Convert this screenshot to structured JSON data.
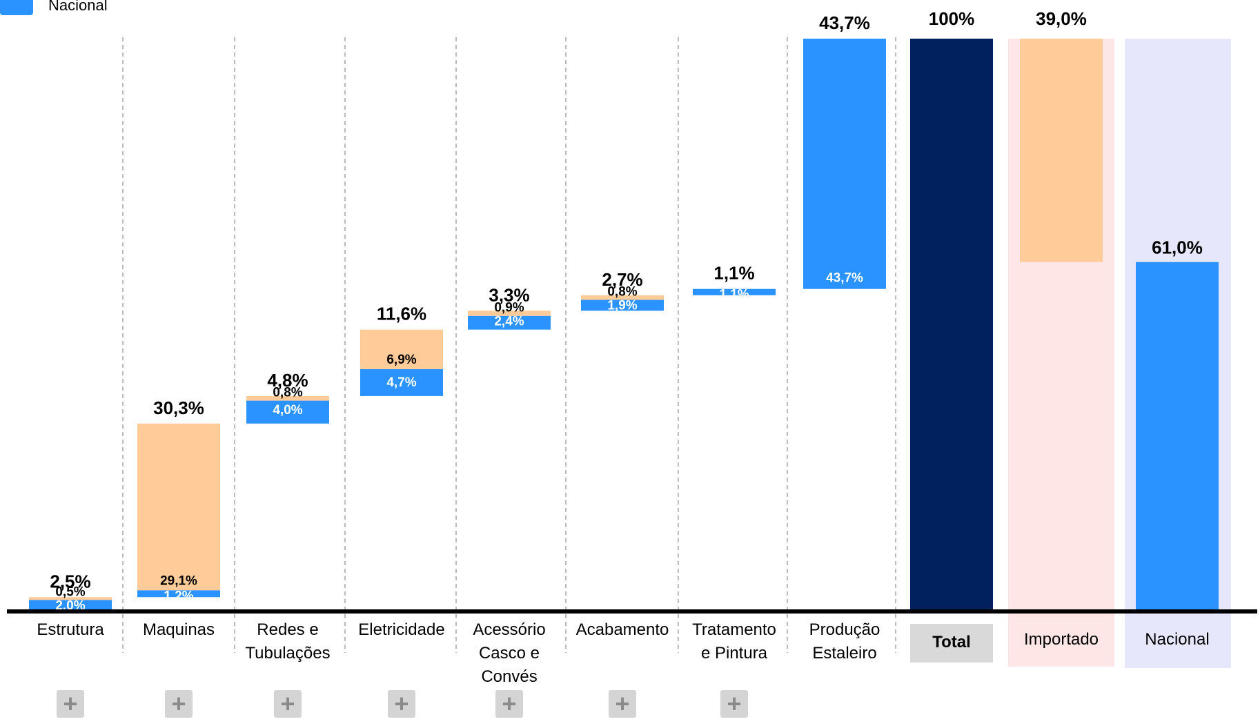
{
  "legend": {
    "nacional_label": "Nacional"
  },
  "colors": {
    "nacional": "#2b93ff",
    "importado": "#ffcc99",
    "total": "#00215e",
    "importado_bg": "#fde6e5",
    "nacional_bg": "#e6e7fb",
    "total_label_bg": "#d9d9d9"
  },
  "expand_buttons": {
    "symbol": "+",
    "count": 7,
    "icon": "plus-icon"
  },
  "chart_data": {
    "type": "bar",
    "subtype": "waterfall",
    "ylim": [
      0,
      100
    ],
    "grid": false,
    "legend_position": "top-left",
    "categories": [
      {
        "label": "Estrutura",
        "nacional": 2.0,
        "importado": 0.5,
        "total": 2.5,
        "nacional_label": "2,0%",
        "importado_label": "0,5%",
        "total_label": "2,5%",
        "expandable": true
      },
      {
        "label": "Maquinas",
        "nacional": 1.2,
        "importado": 29.1,
        "total": 30.3,
        "nacional_label": "1,2%",
        "importado_label": "29,1%",
        "total_label": "30,3%",
        "expandable": true
      },
      {
        "label": "Redes e\nTubulações",
        "nacional": 4.0,
        "importado": 0.8,
        "total": 4.8,
        "nacional_label": "4,0%",
        "importado_label": "0,8%",
        "total_label": "4,8%",
        "expandable": true
      },
      {
        "label": "Eletricidade",
        "nacional": 4.7,
        "importado": 6.9,
        "total": 11.6,
        "nacional_label": "4,7%",
        "importado_label": "6,9%",
        "total_label": "11,6%",
        "expandable": true
      },
      {
        "label": "Acessório\nCasco e\nConvés",
        "nacional": 2.4,
        "importado": 0.9,
        "total": 3.3,
        "nacional_label": "2,4%",
        "importado_label": "0,9%",
        "total_label": "3,3%",
        "expandable": true
      },
      {
        "label": "Acabamento",
        "nacional": 1.9,
        "importado": 0.8,
        "total": 2.7,
        "nacional_label": "1,9%",
        "importado_label": "0,8%",
        "total_label": "2,7%",
        "expandable": true
      },
      {
        "label": "Tratamento\ne Pintura",
        "nacional": 1.1,
        "importado": 0.0,
        "total": 1.1,
        "nacional_label": "1,1%",
        "importado_label": "",
        "total_label": "1,1%",
        "expandable": true
      },
      {
        "label": "Produção\nEstaleiro",
        "nacional": 43.7,
        "importado": 0.0,
        "total": 43.7,
        "nacional_label": "43,7%",
        "importado_label": "",
        "total_label": "43,7%",
        "expandable": false
      }
    ],
    "summary": [
      {
        "key": "total",
        "label": "Total",
        "value": 100.0,
        "value_label": "100%"
      },
      {
        "key": "importado",
        "label": "Importado",
        "value": 39.0,
        "value_label": "39,0%"
      },
      {
        "key": "nacional",
        "label": "Nacional",
        "value": 61.0,
        "value_label": "61,0%"
      }
    ]
  }
}
